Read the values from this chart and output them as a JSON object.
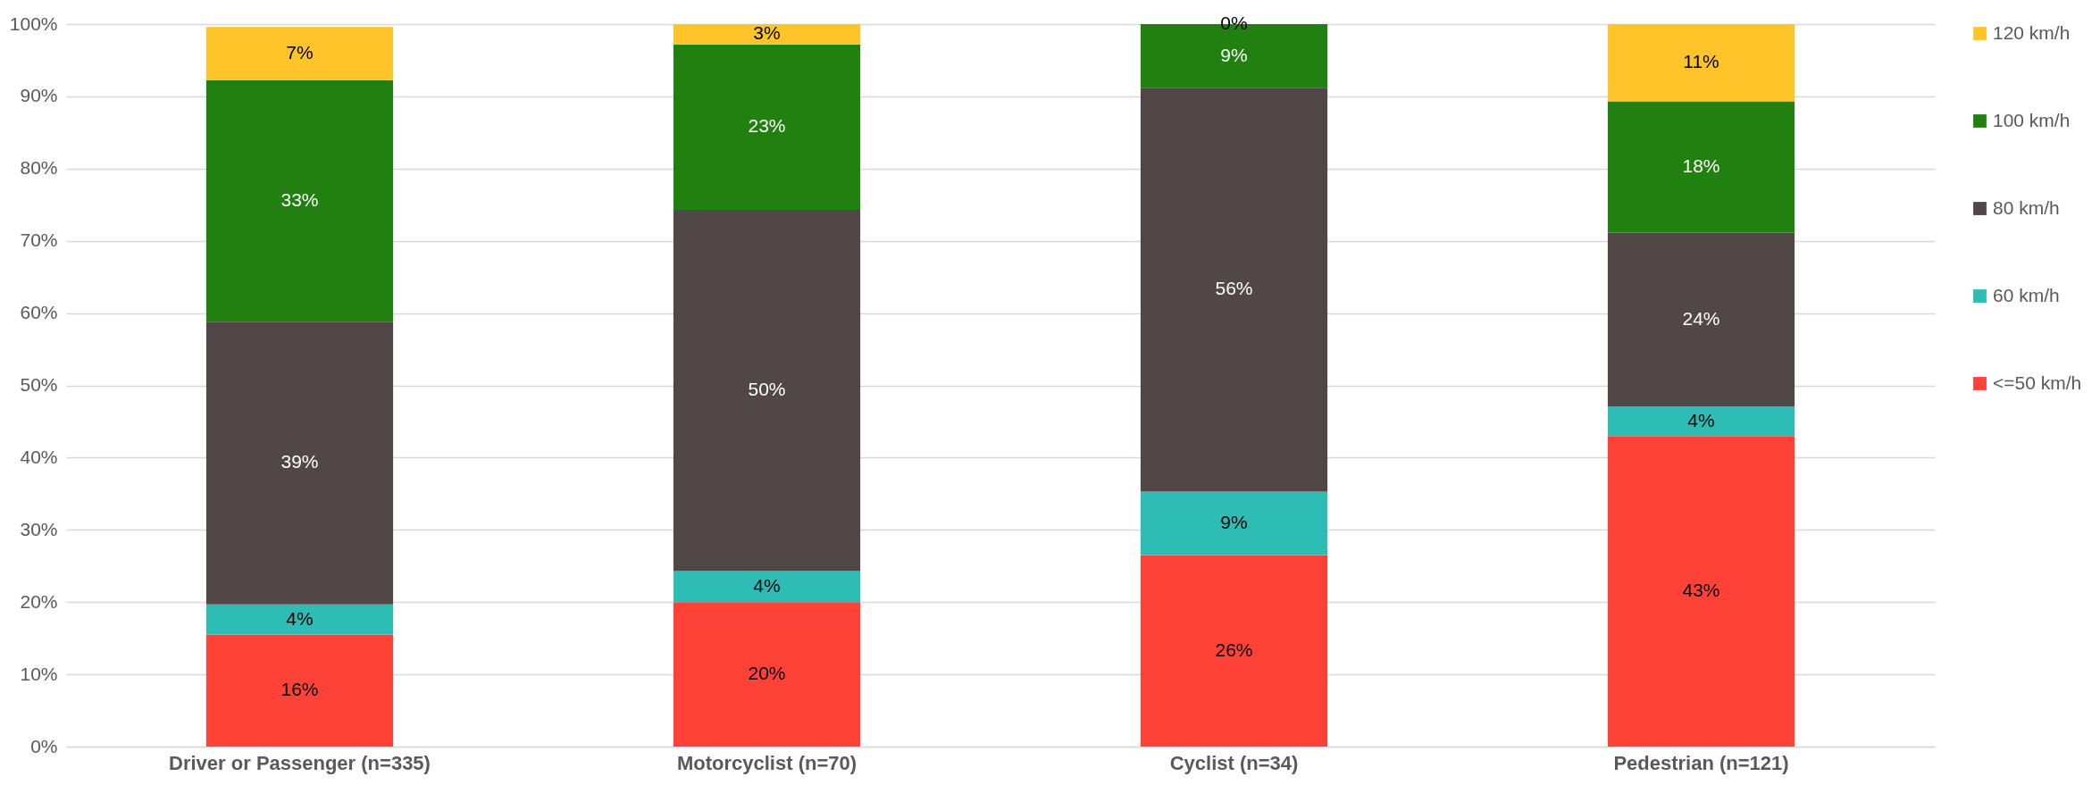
{
  "chart_data": {
    "type": "bar",
    "stacked": true,
    "categories": [
      "Driver or Passenger (n=335)",
      "Motorcyclist (n=70)",
      "Cyclist (n=34)",
      "Pedestrian (n=121)"
    ],
    "series": [
      {
        "name": "<=50 km/h",
        "color": "#fe4238",
        "values": [
          15.5,
          20.0,
          26.5,
          43.0
        ],
        "value_labels": [
          "16%",
          "20%",
          "26%",
          "43%"
        ]
      },
      {
        "name": "60 km/h",
        "color": "#2ebdb5",
        "values": [
          4.2,
          4.3,
          8.8,
          4.1
        ],
        "value_labels": [
          "4%",
          "4%",
          "9%",
          "4%"
        ]
      },
      {
        "name": "80 km/h",
        "color": "#504746",
        "values": [
          39.1,
          50.0,
          55.9,
          24.0
        ],
        "value_labels": [
          "39%",
          "50%",
          "56%",
          "24%"
        ]
      },
      {
        "name": "100 km/h",
        "color": "#218010",
        "values": [
          33.4,
          22.9,
          8.8,
          18.2
        ],
        "value_labels": [
          "33%",
          "23%",
          "9%",
          "18%"
        ]
      },
      {
        "name": "120 km/h",
        "color": "#fec42a",
        "values": [
          7.4,
          2.8,
          0,
          10.7
        ],
        "value_labels": [
          "7%",
          "3%",
          "0%",
          "11%"
        ]
      }
    ],
    "ylim": [
      0,
      100
    ],
    "yticks": [
      {
        "value": 0,
        "label": "0%"
      },
      {
        "value": 10,
        "label": "10%"
      },
      {
        "value": 20,
        "label": "20%"
      },
      {
        "value": 30,
        "label": "30%"
      },
      {
        "value": 40,
        "label": "40%"
      },
      {
        "value": 50,
        "label": "50%"
      },
      {
        "value": 60,
        "label": "60%"
      },
      {
        "value": 70,
        "label": "70%"
      },
      {
        "value": 80,
        "label": "80%"
      },
      {
        "value": 90,
        "label": "90%"
      },
      {
        "value": 100,
        "label": "100%"
      }
    ],
    "grid": "y",
    "legend": "right"
  }
}
